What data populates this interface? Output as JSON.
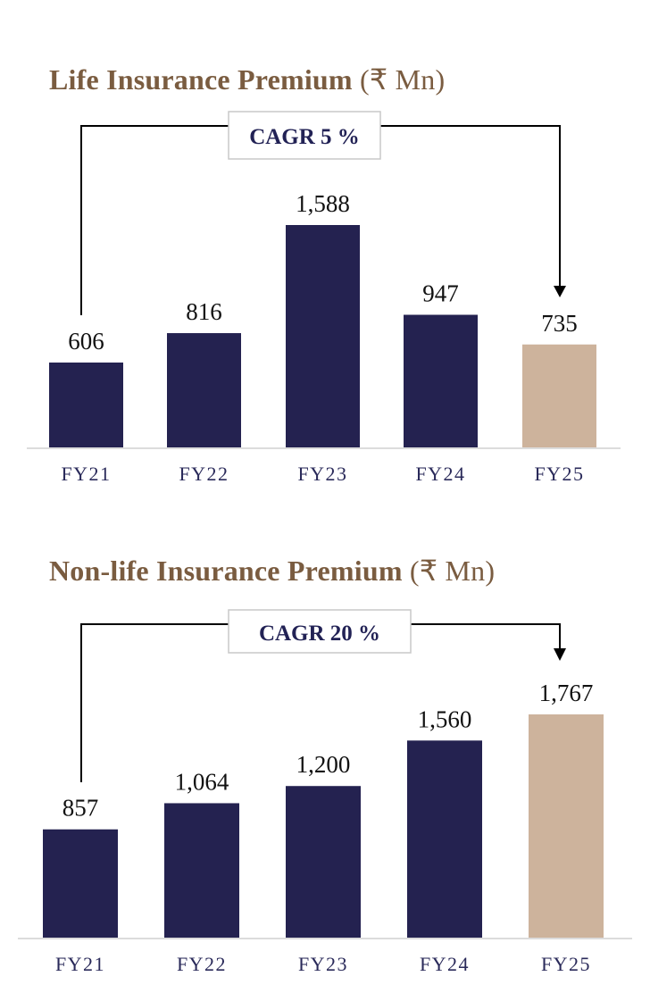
{
  "colors": {
    "title": "#7a5c40",
    "bar": "#242250",
    "highlight_bar": "#cdb39c",
    "cagr_text": "#222255",
    "category_text": "#2a2a5a",
    "axis": "#d0d0d0"
  },
  "chart_data": [
    {
      "type": "bar",
      "title": "Life Insurance Premium",
      "title_unit": "(₹ Mn)",
      "annotation": "CAGR 5 %",
      "categories": [
        "FY21",
        "FY22",
        "FY23",
        "FY24",
        "FY25"
      ],
      "values": [
        606,
        816,
        1588,
        947,
        735
      ],
      "value_labels": [
        "606",
        "816",
        "1,588",
        "947",
        "735"
      ],
      "highlight_index": 4,
      "xlabel": "",
      "ylabel": "",
      "ylim": [
        0,
        1588
      ],
      "grid": false
    },
    {
      "type": "bar",
      "title": "Non-life Insurance Premium",
      "title_unit": "(₹ Mn)",
      "annotation": "CAGR 20 %",
      "categories": [
        "FY21",
        "FY22",
        "FY23",
        "FY24",
        "FY25"
      ],
      "values": [
        857,
        1064,
        1200,
        1560,
        1767
      ],
      "value_labels": [
        "857",
        "1,064",
        "1,200",
        "1,560",
        "1,767"
      ],
      "highlight_index": 4,
      "xlabel": "",
      "ylabel": "",
      "ylim": [
        0,
        1767
      ],
      "grid": false
    }
  ]
}
